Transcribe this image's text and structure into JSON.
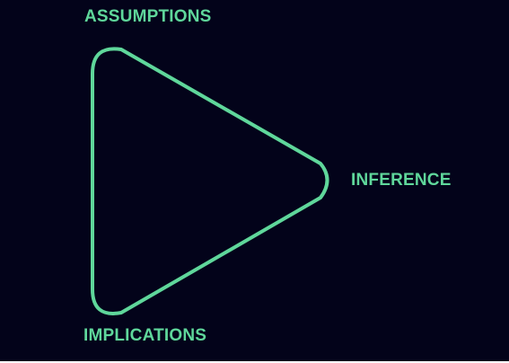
{
  "colors": {
    "background": "#03031a",
    "accent": "#5fd79b"
  },
  "diagram": {
    "shape": "rounded-triangle",
    "vertices": [
      {
        "id": "assumptions",
        "label": "ASSUMPTIONS"
      },
      {
        "id": "inference",
        "label": "INFERENCE"
      },
      {
        "id": "implications",
        "label": "IMPLICATIONS"
      }
    ]
  }
}
